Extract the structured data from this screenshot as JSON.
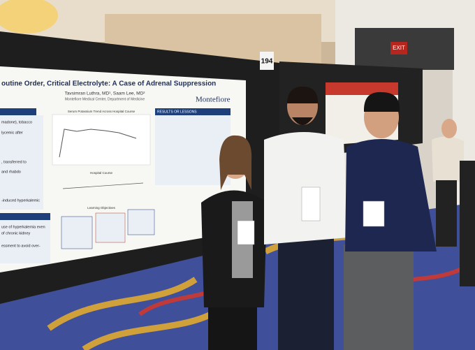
{
  "poster": {
    "title": "outine Order, Critical Electrolyte: A Case of Adrenal Suppression",
    "authors": "Tavsimran Luthra, MD¹, Saam Lee, MD²",
    "affiliation": "Montefiore Medical Center, Department of Medicine",
    "logo": "Montefiore",
    "chart_title": "Serum Potassium Trend Across Hospital Course",
    "results_heading": "RESULTS OR LESSONS",
    "hospital_course": "Hospital Course",
    "learning_objectives": "Learning Objectives",
    "left_fragments": [
      "madone), tobacco",
      "lycemic after",
      ", transferred to",
      "and rhabdo",
      "-induced hyperkalemic",
      "use of hyperkalemia even",
      "of chronic kidney",
      "essment to avoid over-"
    ]
  },
  "board_number": "194",
  "exit_sign": "EXIT"
}
